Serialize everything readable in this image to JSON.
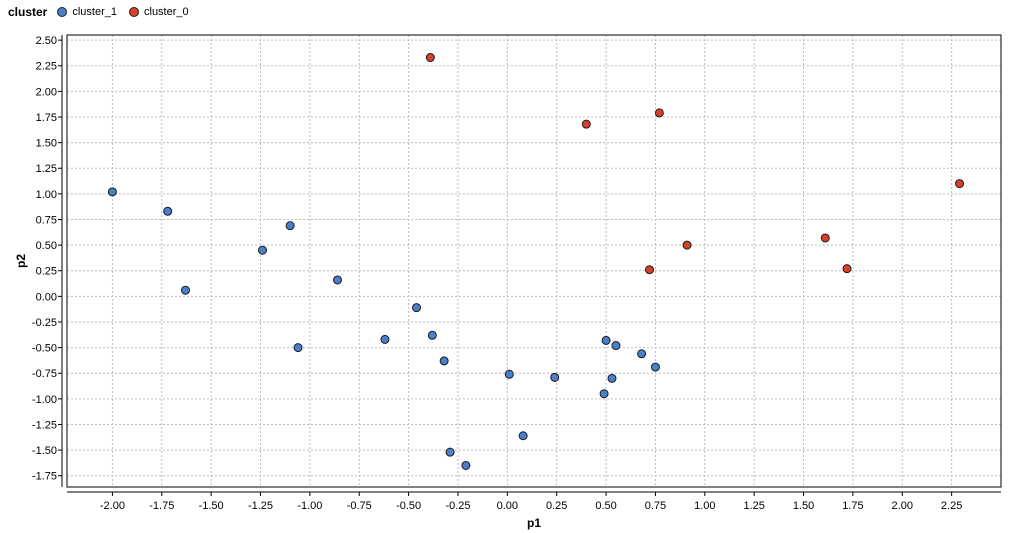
{
  "legend": {
    "title": "cluster",
    "items": [
      {
        "label": "cluster_1",
        "color": "#4a7fcb"
      },
      {
        "label": "cluster_0",
        "color": "#d9402c"
      }
    ]
  },
  "chart_data": {
    "type": "scatter",
    "xlabel": "p1",
    "ylabel": "p2",
    "xlim": [
      -2.23,
      2.5
    ],
    "ylim": [
      -1.86,
      2.55
    ],
    "xticks": [
      "-2.00",
      "-1.75",
      "-1.50",
      "-1.25",
      "-1.00",
      "-0.75",
      "-0.50",
      "-0.25",
      "0.00",
      "0.25",
      "0.50",
      "0.75",
      "1.00",
      "1.25",
      "1.50",
      "1.75",
      "2.00",
      "2.25"
    ],
    "yticks": [
      "2.50",
      "2.25",
      "2.00",
      "1.75",
      "1.50",
      "1.25",
      "1.00",
      "0.75",
      "0.50",
      "0.25",
      "0.00",
      "-0.25",
      "-0.50",
      "-0.75",
      "-1.00",
      "-1.25",
      "-1.50",
      "-1.75"
    ],
    "grid": true,
    "legend_position": "top-left",
    "series": [
      {
        "name": "cluster_1",
        "color": "#4a7fcb",
        "points": [
          [
            -2.0,
            1.02
          ],
          [
            -1.72,
            0.83
          ],
          [
            -1.63,
            0.06
          ],
          [
            -1.24,
            0.45
          ],
          [
            -1.1,
            0.69
          ],
          [
            -1.06,
            -0.5
          ],
          [
            -0.86,
            0.16
          ],
          [
            -0.62,
            -0.42
          ],
          [
            -0.46,
            -0.11
          ],
          [
            -0.38,
            -0.38
          ],
          [
            -0.32,
            -0.63
          ],
          [
            -0.29,
            -1.52
          ],
          [
            -0.21,
            -1.65
          ],
          [
            0.01,
            -0.76
          ],
          [
            0.08,
            -1.36
          ],
          [
            0.24,
            -0.79
          ],
          [
            0.49,
            -0.95
          ],
          [
            0.5,
            -0.43
          ],
          [
            0.53,
            -0.8
          ],
          [
            0.55,
            -0.48
          ],
          [
            0.68,
            -0.56
          ],
          [
            0.75,
            -0.69
          ]
        ]
      },
      {
        "name": "cluster_0",
        "color": "#d9402c",
        "points": [
          [
            -0.39,
            2.33
          ],
          [
            0.4,
            1.68
          ],
          [
            0.77,
            1.79
          ],
          [
            0.72,
            0.26
          ],
          [
            0.91,
            0.5
          ],
          [
            1.61,
            0.57
          ],
          [
            1.72,
            0.27
          ],
          [
            2.29,
            1.1
          ]
        ]
      }
    ]
  }
}
